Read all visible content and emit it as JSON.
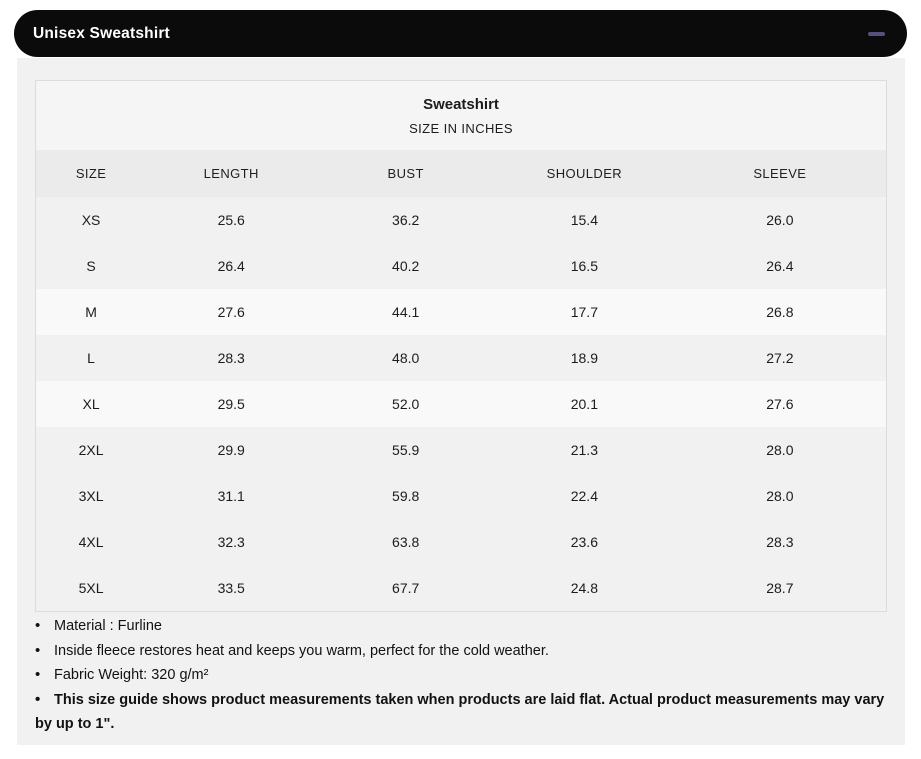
{
  "accordion": {
    "title": "Unisex Sweatshirt",
    "collapse_icon": "minus"
  },
  "size_chart": {
    "title": "Sweatshirt",
    "subtitle": "SIZE IN INCHES",
    "columns": [
      "SIZE",
      "LENGTH",
      "BUST",
      "SHOULDER",
      "SLEEVE"
    ],
    "rows": [
      {
        "size": "XS",
        "length": "25.6",
        "bust": "36.2",
        "shoulder": "15.4",
        "sleeve": "26.0",
        "highlight": false
      },
      {
        "size": "S",
        "length": "26.4",
        "bust": "40.2",
        "shoulder": "16.5",
        "sleeve": "26.4",
        "highlight": false
      },
      {
        "size": "M",
        "length": "27.6",
        "bust": "44.1",
        "shoulder": "17.7",
        "sleeve": "26.8",
        "highlight": true
      },
      {
        "size": "L",
        "length": "28.3",
        "bust": "48.0",
        "shoulder": "18.9",
        "sleeve": "27.2",
        "highlight": false
      },
      {
        "size": "XL",
        "length": "29.5",
        "bust": "52.0",
        "shoulder": "20.1",
        "sleeve": "27.6",
        "highlight": true
      },
      {
        "size": "2XL",
        "length": "29.9",
        "bust": "55.9",
        "shoulder": "21.3",
        "sleeve": "28.0",
        "highlight": false
      },
      {
        "size": "3XL",
        "length": "31.1",
        "bust": "59.8",
        "shoulder": "22.4",
        "sleeve": "28.0",
        "highlight": false
      },
      {
        "size": "4XL",
        "length": "32.3",
        "bust": "63.8",
        "shoulder": "23.6",
        "sleeve": "28.3",
        "highlight": false
      },
      {
        "size": "5XL",
        "length": "33.5",
        "bust": "67.7",
        "shoulder": "24.8",
        "sleeve": "28.7",
        "highlight": false
      }
    ]
  },
  "notes": [
    {
      "text": "Material : Furline",
      "bold": false
    },
    {
      "text": "Inside fleece restores heat and keeps you warm, perfect for the cold weather.",
      "bold": false
    },
    {
      "text": "Fabric Weight: 320 g/m²",
      "bold": false
    },
    {
      "text": "This size guide shows product measurements taken when products are laid flat. Actual product measurements may vary by up to 1\".",
      "bold": true
    }
  ],
  "colors": {
    "header_bg": "#0b0b0b",
    "header_text": "#ffffff",
    "minus_icon": "#55517c",
    "panel_bg": "#f1f1f1",
    "table_title_bg": "#f5f5f5",
    "column_header_bg": "#ebebeb",
    "row_default_bg": "#f1f1f1",
    "row_highlight_bg": "#f9f9f9",
    "table_border": "#dcdcdc",
    "body_text": "#1c1c1c"
  }
}
